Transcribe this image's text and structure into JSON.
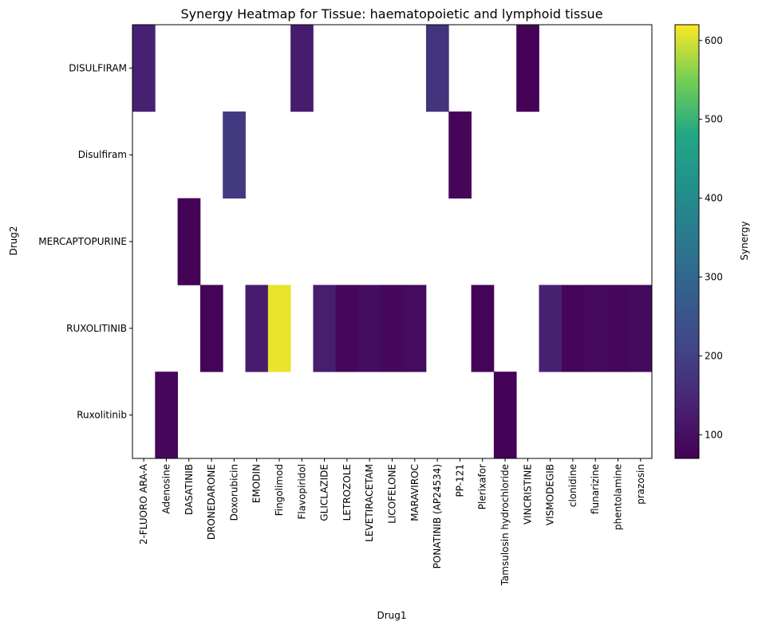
{
  "chart_data": {
    "type": "heatmap",
    "title": "Synergy Heatmap for Tissue: haematopoietic and lymphoid tissue",
    "xlabel": "Drug1",
    "ylabel": "Drug2",
    "x_categories": [
      "2-FLUORO ARA-A",
      "Adenosine",
      "DASATINIB",
      "DRONEDARONE",
      "Doxorubicin",
      "EMODIN",
      "Fingolimod",
      "Flavopiridol",
      "GLICLAZIDE",
      "LETROZOLE",
      "LEVETIRACETAM",
      "LICOFELONE",
      "MARAVIROC",
      "PONATINIB (AP24534)",
      "PP-121",
      "Plerixafor",
      "Tamsulosin hydrochloride",
      "VINCRISTINE",
      "VISMODEGIB",
      "clonidine",
      "flunarizine",
      "phentolamine",
      "prazosin"
    ],
    "y_categories": [
      "DISULFIRAM",
      "Disulfiram",
      "MERCAPTOPURINE",
      "RUXOLITINIB",
      "Ruxolitinib"
    ],
    "values": [
      [
        135,
        null,
        null,
        null,
        null,
        null,
        null,
        125,
        null,
        null,
        null,
        null,
        null,
        175,
        null,
        null,
        null,
        75,
        null,
        null,
        null,
        null,
        null
      ],
      [
        null,
        null,
        null,
        null,
        185,
        null,
        null,
        null,
        null,
        null,
        null,
        null,
        null,
        null,
        80,
        null,
        null,
        null,
        null,
        null,
        null,
        null,
        null
      ],
      [
        null,
        null,
        75,
        null,
        null,
        null,
        null,
        null,
        null,
        null,
        null,
        null,
        null,
        null,
        null,
        null,
        null,
        null,
        null,
        null,
        null,
        null,
        null
      ],
      [
        null,
        null,
        null,
        78,
        null,
        125,
        610,
        null,
        128,
        82,
        95,
        85,
        92,
        null,
        null,
        78,
        null,
        null,
        135,
        80,
        88,
        82,
        88
      ],
      [
        null,
        85,
        null,
        null,
        null,
        null,
        null,
        null,
        null,
        null,
        null,
        null,
        null,
        null,
        null,
        null,
        75,
        null,
        null,
        null,
        null,
        null,
        null
      ]
    ],
    "colorbar": {
      "label": "Synergy",
      "range": [
        70,
        620
      ],
      "ticks": [
        100,
        200,
        300,
        400,
        500,
        600
      ],
      "colormap": "viridis"
    }
  }
}
